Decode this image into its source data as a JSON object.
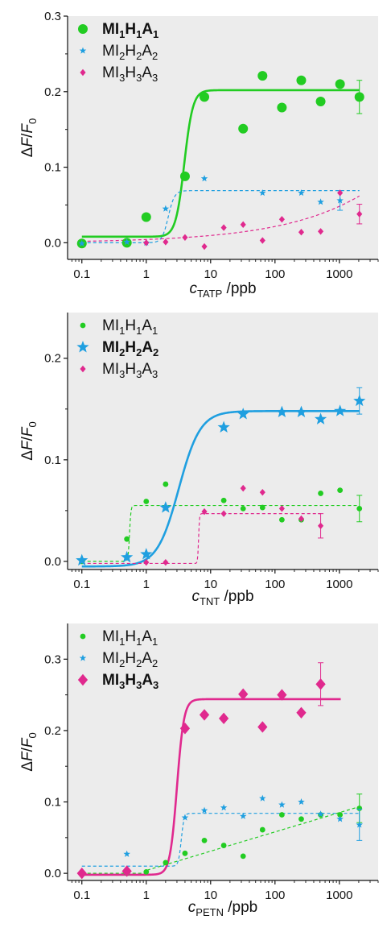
{
  "colors": {
    "green": "#22cc22",
    "blue": "#1f9fe0",
    "pink": "#e0298e",
    "plot_bg": "#ececec"
  },
  "chart_data": [
    {
      "type": "scatter",
      "xscale": "log",
      "xlim": [
        0.06,
        4000
      ],
      "ylim": [
        -0.022,
        0.3
      ],
      "xticks": [
        {
          "v": 0.1,
          "label": "0.1"
        },
        {
          "v": 1,
          "label": "1"
        },
        {
          "v": 10,
          "label": "10"
        },
        {
          "v": 100,
          "label": "100"
        },
        {
          "v": 1000,
          "label": "1000"
        }
      ],
      "yticks": [
        {
          "v": 0,
          "label": "0.0"
        },
        {
          "v": 0.1,
          "label": "0.1"
        },
        {
          "v": 0.2,
          "label": "0.2"
        },
        {
          "v": 0.3,
          "label": "0.3"
        }
      ],
      "xlabel": {
        "var": "c",
        "sub": "TATP",
        "unit": " /ppb"
      },
      "ylabel": {
        "pre": "Δ",
        "var": "F",
        "sep": "/",
        "var2": "F",
        "sub": "0"
      },
      "legend_position": "top-left",
      "series": [
        {
          "name": {
            "p1": "MI",
            "s1": "1",
            "p2": "H",
            "s2": "1",
            "p3": "A",
            "s3": "1"
          },
          "color": "#22cc22",
          "marker": "circle",
          "size": "large",
          "bold": true,
          "fit": {
            "style": "solid",
            "type": "sigmoid",
            "bottom": 0.008,
            "top": 0.202,
            "x0": 3.9,
            "slope": 6.5
          },
          "x": [
            0.1,
            0.5,
            1,
            4,
            8,
            32,
            64,
            128,
            256,
            512,
            1024,
            2048
          ],
          "y": [
            -0.001,
            0.0,
            0.034,
            0.088,
            0.193,
            0.151,
            0.221,
            0.179,
            0.215,
            0.187,
            0.21,
            0.193
          ],
          "error_bar": {
            "x": 2048,
            "y": 0.193,
            "err": 0.022
          }
        },
        {
          "name": {
            "p1": "MI",
            "s1": "2",
            "p2": "H",
            "s2": "2",
            "p3": "A",
            "s3": "2"
          },
          "color": "#1f9fe0",
          "marker": "star",
          "size": "small",
          "bold": false,
          "fit": {
            "style": "dashed",
            "type": "sigmoid",
            "bottom": 0.0,
            "top": 0.069,
            "x0": 2.2,
            "slope": 9
          },
          "x": [
            0.1,
            0.5,
            1,
            2,
            8,
            64,
            256,
            512,
            1024
          ],
          "y": [
            -0.001,
            0.001,
            0.0,
            0.045,
            0.085,
            0.066,
            0.066,
            0.054,
            0.056
          ],
          "error_bar": {
            "x": 1024,
            "y": 0.056,
            "err": 0.013
          }
        },
        {
          "name": {
            "p1": "MI",
            "s1": "3",
            "p2": "H",
            "s2": "3",
            "p3": "A",
            "s3": "3"
          },
          "color": "#e0298e",
          "marker": "diamond",
          "size": "small",
          "bold": false,
          "fit": {
            "style": "dashed",
            "type": "power",
            "a": 0.0,
            "b": 0.0043,
            "n": 0.35
          },
          "x": [
            1,
            2,
            4,
            8,
            16,
            32,
            64,
            128,
            256,
            512,
            1024,
            2048
          ],
          "y": [
            0.0,
            0.001,
            0.007,
            -0.005,
            0.02,
            0.024,
            0.003,
            0.031,
            0.014,
            0.015,
            0.066,
            0.038
          ],
          "error_bar": {
            "x": 2048,
            "y": 0.038,
            "err": 0.013
          }
        }
      ]
    },
    {
      "type": "scatter",
      "xscale": "log",
      "xlim": [
        0.06,
        4000
      ],
      "ylim": [
        -0.008,
        0.245
      ],
      "xticks": [
        {
          "v": 0.1,
          "label": "0.1"
        },
        {
          "v": 1,
          "label": "1"
        },
        {
          "v": 10,
          "label": "10"
        },
        {
          "v": 100,
          "label": "100"
        },
        {
          "v": 1000,
          "label": "1000"
        }
      ],
      "yticks": [
        {
          "v": 0,
          "label": "0.0"
        },
        {
          "v": 0.1,
          "label": "0.1"
        },
        {
          "v": 0.2,
          "label": "0.2"
        }
      ],
      "xlabel": {
        "var": "c",
        "sub": "TNT",
        "unit": " /ppb"
      },
      "ylabel": {
        "pre": "Δ",
        "var": "F",
        "sep": "/",
        "var2": "F",
        "sub": "0"
      },
      "legend_position": "top-left",
      "series": [
        {
          "name": {
            "p1": "MI",
            "s1": "1",
            "p2": "H",
            "s2": "1",
            "p3": "A",
            "s3": "1"
          },
          "color": "#22cc22",
          "marker": "circle",
          "size": "small",
          "bold": false,
          "fit": {
            "style": "dashed",
            "type": "sigmoid",
            "bottom": 0.0,
            "top": 0.055,
            "x0": 0.55,
            "slope": 40
          },
          "x": [
            0.1,
            0.5,
            1,
            2,
            16,
            32,
            64,
            128,
            256,
            512,
            1024,
            2048
          ],
          "y": [
            0.0,
            0.022,
            0.059,
            0.076,
            0.06,
            0.052,
            0.053,
            0.041,
            0.041,
            0.067,
            0.07,
            0.052
          ],
          "error_bar": {
            "x": 2048,
            "y": 0.052,
            "err": 0.013
          }
        },
        {
          "name": {
            "p1": "MI",
            "s1": "2",
            "p2": "H",
            "s2": "2",
            "p3": "A",
            "s3": "2"
          },
          "color": "#1f9fe0",
          "marker": "star",
          "size": "large",
          "bold": true,
          "fit": {
            "style": "solid",
            "type": "sigmoid",
            "bottom": -0.005,
            "top": 0.148,
            "x0": 3.2,
            "slope": 2.6
          },
          "x": [
            0.1,
            0.5,
            1,
            2,
            16,
            32,
            128,
            256,
            512,
            1024,
            2048
          ],
          "y": [
            0.001,
            0.004,
            0.007,
            0.053,
            0.132,
            0.145,
            0.147,
            0.147,
            0.14,
            0.148,
            0.158
          ],
          "error_bar": {
            "x": 2048,
            "y": 0.158,
            "err": 0.013
          }
        },
        {
          "name": {
            "p1": "MI",
            "s1": "3",
            "p2": "H",
            "s2": "3",
            "p3": "A",
            "s3": "3"
          },
          "color": "#e0298e",
          "marker": "diamond",
          "size": "small",
          "bold": false,
          "fit": {
            "style": "dashed",
            "type": "sigmoid",
            "bottom": -0.002,
            "top": 0.047,
            "x0": 6.5,
            "slope": 60,
            "xmax": 520
          },
          "x": [
            1,
            2,
            8,
            16,
            32,
            64,
            128,
            256,
            512
          ],
          "y": [
            -0.001,
            -0.001,
            0.049,
            0.047,
            0.072,
            0.068,
            0.052,
            0.042,
            0.035
          ],
          "error_bar": {
            "x": 512,
            "y": 0.035,
            "err": 0.012
          }
        }
      ]
    },
    {
      "type": "scatter",
      "xscale": "log",
      "xlim": [
        0.06,
        4000
      ],
      "ylim": [
        -0.01,
        0.35
      ],
      "xticks": [
        {
          "v": 0.1,
          "label": "0.1"
        },
        {
          "v": 1,
          "label": "1"
        },
        {
          "v": 10,
          "label": "10"
        },
        {
          "v": 100,
          "label": "100"
        },
        {
          "v": 1000,
          "label": "1000"
        }
      ],
      "yticks": [
        {
          "v": 0,
          "label": "0.0"
        },
        {
          "v": 0.1,
          "label": "0.1"
        },
        {
          "v": 0.2,
          "label": "0.2"
        },
        {
          "v": 0.3,
          "label": "0.3"
        }
      ],
      "xlabel": {
        "var": "c",
        "sub": "PETN",
        "unit": " /ppb"
      },
      "ylabel": {
        "pre": "Δ",
        "var": "F",
        "sep": "/",
        "var2": "F",
        "sub": "0"
      },
      "legend_position": "top-left",
      "series": [
        {
          "name": {
            "p1": "MI",
            "s1": "1",
            "p2": "H",
            "s2": "1",
            "p3": "A",
            "s3": "1"
          },
          "color": "#22cc22",
          "marker": "circle",
          "size": "small",
          "bold": false,
          "fit": {
            "style": "dashed",
            "type": "logline",
            "from": 1,
            "a": 0.004,
            "b": 0.027
          },
          "x": [
            0.1,
            0.5,
            1,
            2,
            4,
            8,
            16,
            32,
            64,
            128,
            256,
            512,
            1024,
            2048
          ],
          "y": [
            0.0,
            0.0,
            0.002,
            0.015,
            0.028,
            0.046,
            0.039,
            0.024,
            0.061,
            0.082,
            0.076,
            0.082,
            0.082,
            0.091
          ],
          "error_bar": {
            "x": 2048,
            "y": 0.091,
            "err": 0.02
          }
        },
        {
          "name": {
            "p1": "MI",
            "s1": "2",
            "p2": "H",
            "s2": "2",
            "p3": "A",
            "s3": "2"
          },
          "color": "#1f9fe0",
          "marker": "star",
          "size": "small",
          "bold": false,
          "fit": {
            "style": "dashed",
            "type": "sigmoid",
            "bottom": 0.01,
            "top": 0.084,
            "x0": 3.5,
            "slope": 20
          },
          "x": [
            0.5,
            4,
            8,
            16,
            32,
            64,
            128,
            256,
            512,
            1024,
            2048
          ],
          "y": [
            0.027,
            0.078,
            0.088,
            0.092,
            0.08,
            0.105,
            0.096,
            0.1,
            0.083,
            0.076,
            0.068
          ],
          "error_bar": {
            "x": 2048,
            "y": 0.068,
            "err": 0.022
          }
        },
        {
          "name": {
            "p1": "MI",
            "s1": "3",
            "p2": "H",
            "s2": "3",
            "p3": "A",
            "s3": "3"
          },
          "color": "#e0298e",
          "marker": "diamond",
          "size": "large",
          "bold": true,
          "fit": {
            "style": "solid",
            "type": "sigmoid",
            "bottom": -0.002,
            "top": 0.244,
            "x0": 3.0,
            "slope": 8,
            "xmax": 1050
          },
          "x": [
            0.1,
            0.5,
            4,
            8,
            16,
            32,
            64,
            128,
            256,
            512
          ],
          "y": [
            0.0,
            0.003,
            0.203,
            0.222,
            0.217,
            0.251,
            0.205,
            0.25,
            0.225,
            0.265
          ],
          "error_bar": {
            "x": 512,
            "y": 0.265,
            "err": 0.03
          }
        }
      ]
    }
  ]
}
